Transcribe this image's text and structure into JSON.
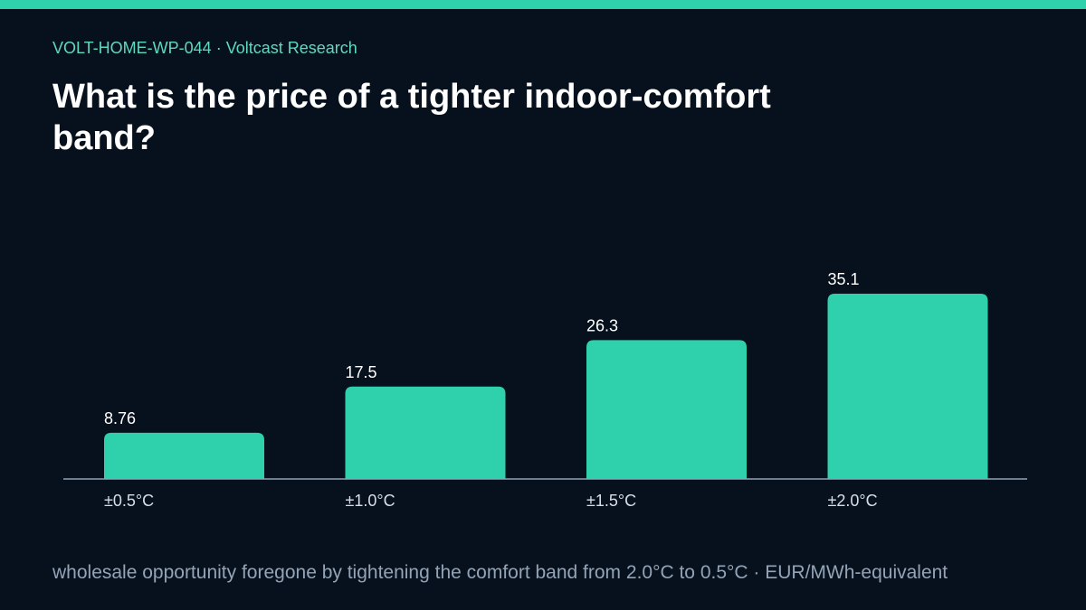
{
  "header": {
    "eyebrow": "VOLT-HOME-WP-044 · Voltcast Research",
    "title": "What is the price of a tighter indoor-comfort band?"
  },
  "caption": "wholesale opportunity foregone by tightening the comfort band from 2.0°C to 0.5°C · EUR/MWh-equivalent",
  "colors": {
    "accent": "#2fd1ac",
    "background": "#07111d"
  },
  "chart_data": {
    "type": "bar",
    "categories": [
      "±0.5°C",
      "±1.0°C",
      "±1.5°C",
      "±2.0°C"
    ],
    "values": [
      8.76,
      17.5,
      26.3,
      35.1
    ],
    "value_labels": [
      "8.76",
      "17.5",
      "26.3",
      "35.1"
    ],
    "ylim": [
      0,
      35.1
    ],
    "grid": false,
    "legend": "none"
  }
}
